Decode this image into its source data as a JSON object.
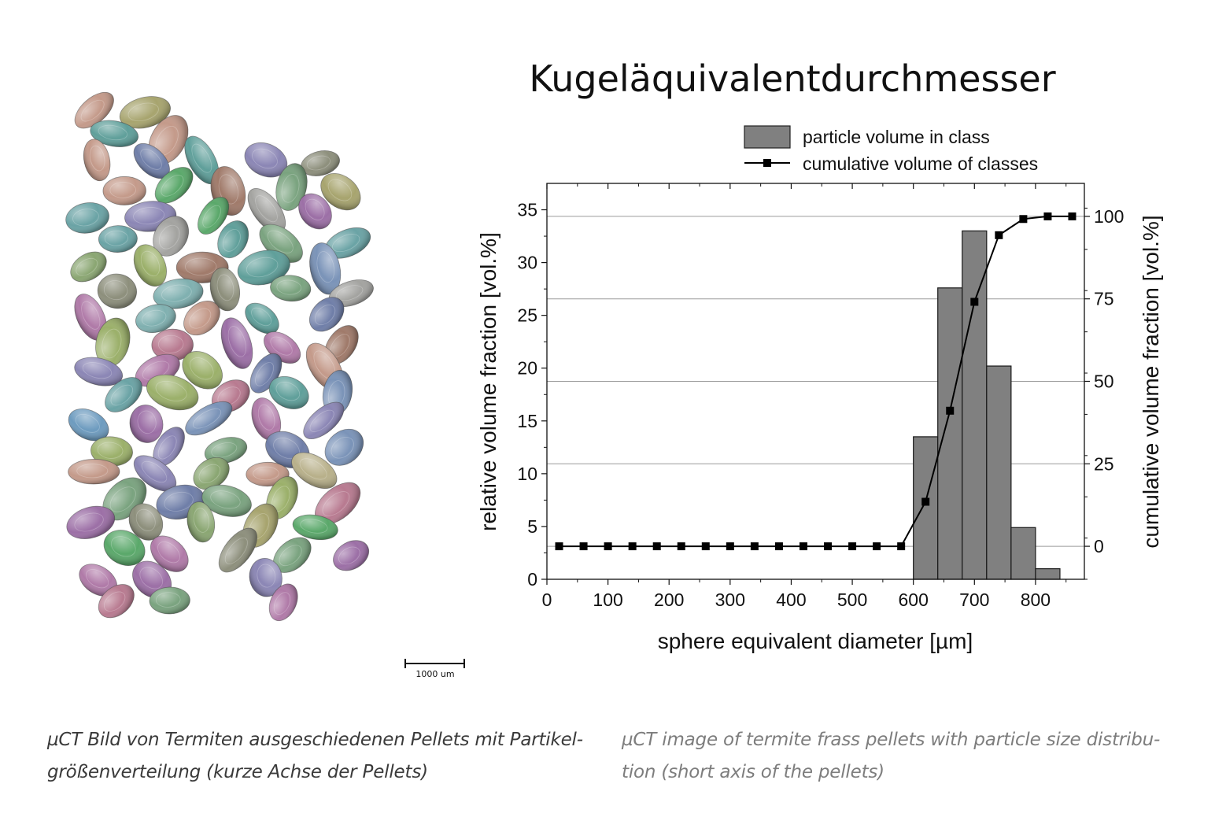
{
  "scale_bar": {
    "label": "1000 um"
  },
  "captions": {
    "de": [
      "µCT Bild von Termiten ausgeschiedenen Pellets mit Partikel-",
      "größenverteilung (kurze Achse der Pellets)"
    ],
    "en": [
      "µCT image of termite frass pellets with particle size distribu-",
      "tion (short axis of the pellets)"
    ]
  },
  "chart_data": {
    "type": "bar",
    "title": "Kugeläquivalentdurchmesser",
    "xlabel": "sphere equivalent diameter [µm]",
    "ylabel": "relative volume fraction [vol.%]",
    "y2label": "cumulative volume fraction [vol.%]",
    "xlim": [
      0,
      880
    ],
    "ylim": [
      0,
      37.5
    ],
    "y2lim": [
      -10,
      110
    ],
    "x_ticks": [
      0,
      100,
      200,
      300,
      400,
      500,
      600,
      700,
      800
    ],
    "y_ticks": [
      0,
      5,
      10,
      15,
      20,
      25,
      30,
      35
    ],
    "y2_ticks": [
      0,
      25,
      50,
      75,
      100
    ],
    "grid": "horizontal lines at right-axis ticks",
    "legend": {
      "placement": "top-right",
      "entries": [
        "particle volume in class",
        "cumulative volume of classes"
      ]
    },
    "series": [
      {
        "name": "particle volume in class",
        "type": "bar",
        "axis": "left",
        "bin_width": 40,
        "x": [
          620,
          660,
          700,
          740,
          780,
          820
        ],
        "values": [
          13.5,
          27.6,
          33.0,
          20.2,
          4.9,
          1.0
        ],
        "color": "#808080"
      },
      {
        "name": "cumulative volume of classes",
        "type": "line",
        "axis": "right",
        "x": [
          20,
          60,
          100,
          140,
          180,
          220,
          260,
          300,
          340,
          380,
          420,
          460,
          500,
          540,
          580,
          620,
          660,
          700,
          740,
          780,
          820,
          860
        ],
        "values": [
          0,
          0,
          0,
          0,
          0,
          0,
          0,
          0,
          0,
          0,
          0,
          0,
          0,
          0,
          0,
          13.5,
          41.1,
          74.1,
          94.3,
          99.2,
          100,
          100
        ],
        "color": "#000000"
      }
    ]
  },
  "pellet_image": {
    "colors": [
      "#8aa672",
      "#6aa3a5",
      "#8b86b5",
      "#a3a3a0",
      "#b87a90",
      "#a7a46e",
      "#7aa37f",
      "#6f7ea8",
      "#c49a8a",
      "#5f9f9a",
      "#9bb06a",
      "#b07aa8",
      "#7a93b8",
      "#8d8f7c",
      "#5aa86a",
      "#b8b08a",
      "#9c6fa6",
      "#7fb0b0",
      "#a07a6a",
      "#6d9bbf"
    ]
  }
}
